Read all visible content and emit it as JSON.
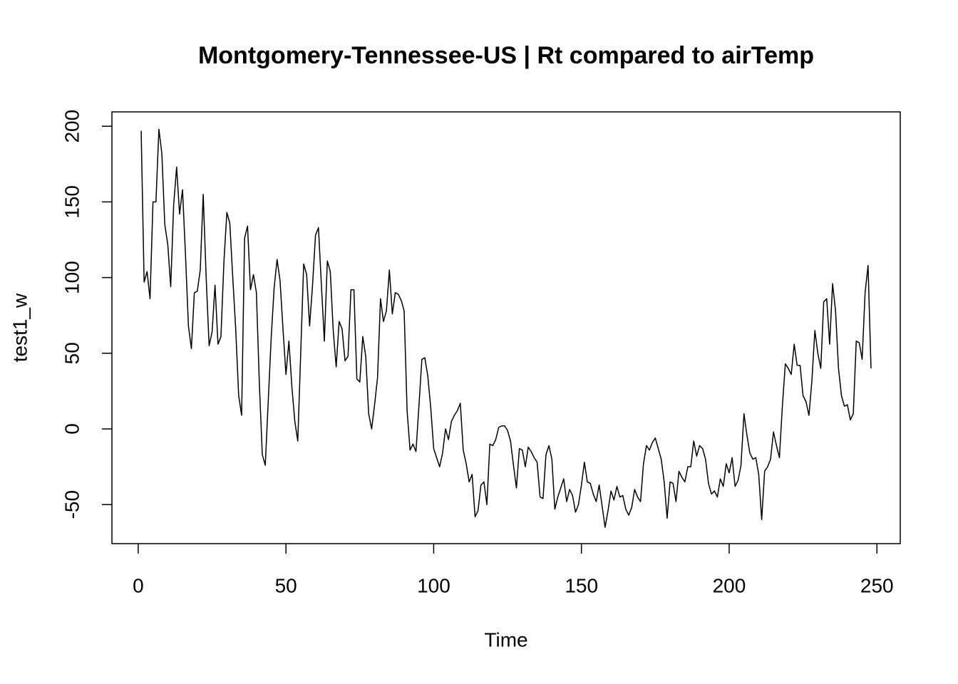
{
  "chart_data": {
    "type": "line",
    "title": "Montgomery-Tennessee-US | Rt compared to airTemp",
    "x_label": "Time",
    "y_label": "test1_w",
    "color": "#000000",
    "xlim": [
      -8.9,
      257.9
    ],
    "ylim": [
      -75.8,
      209.5
    ],
    "xticks": [
      0,
      50,
      100,
      150,
      200,
      250
    ],
    "yticks": [
      -50,
      0,
      50,
      100,
      150,
      200
    ],
    "x": [
      1,
      2,
      3,
      4,
      5,
      6,
      7,
      8,
      9,
      10,
      11,
      12,
      13,
      14,
      15,
      16,
      17,
      18,
      19,
      20,
      21,
      22,
      23,
      24,
      25,
      26,
      27,
      28,
      29,
      30,
      31,
      32,
      33,
      34,
      35,
      36,
      37,
      38,
      39,
      40,
      41,
      42,
      43,
      44,
      45,
      46,
      47,
      48,
      49,
      50,
      51,
      52,
      53,
      54,
      55,
      56,
      57,
      58,
      59,
      60,
      61,
      62,
      63,
      64,
      65,
      66,
      67,
      68,
      69,
      70,
      71,
      72,
      73,
      74,
      75,
      76,
      77,
      78,
      79,
      80,
      81,
      82,
      83,
      84,
      85,
      86,
      87,
      88,
      89,
      90,
      91,
      92,
      93,
      94,
      95,
      96,
      97,
      98,
      99,
      100,
      101,
      102,
      103,
      104,
      105,
      106,
      107,
      108,
      109,
      110,
      111,
      112,
      113,
      114,
      115,
      116,
      117,
      118,
      119,
      120,
      121,
      122,
      123,
      124,
      125,
      126,
      127,
      128,
      129,
      130,
      131,
      132,
      133,
      134,
      135,
      136,
      137,
      138,
      139,
      140,
      141,
      142,
      143,
      144,
      145,
      146,
      147,
      148,
      149,
      150,
      151,
      152,
      153,
      154,
      155,
      156,
      157,
      158,
      159,
      160,
      161,
      162,
      163,
      164,
      165,
      166,
      167,
      168,
      169,
      170,
      171,
      172,
      173,
      174,
      175,
      176,
      177,
      178,
      179,
      180,
      181,
      182,
      183,
      184,
      185,
      186,
      187,
      188,
      189,
      190,
      191,
      192,
      193,
      194,
      195,
      196,
      197,
      198,
      199,
      200,
      201,
      202,
      203,
      204,
      205,
      206,
      207,
      208,
      209,
      210,
      211,
      212,
      213,
      214,
      215,
      216,
      217,
      218,
      219,
      220,
      221,
      222,
      223,
      224,
      225,
      226,
      227,
      228,
      229,
      230,
      231,
      232,
      233,
      234,
      235,
      236,
      237,
      238,
      239,
      240,
      241,
      242,
      243,
      244,
      245,
      246,
      247,
      248
    ],
    "values": [
      197,
      97,
      104,
      86,
      150,
      150,
      198,
      182,
      135,
      122,
      94,
      148,
      173,
      142,
      158,
      115,
      68,
      53,
      90,
      91,
      105,
      155,
      100,
      55,
      64,
      95,
      56,
      61,
      110,
      143,
      136,
      100,
      66,
      22,
      9,
      126,
      134,
      92,
      102,
      90,
      30,
      -17,
      -24,
      18,
      60,
      93,
      112,
      98,
      66,
      36,
      58,
      28,
      5,
      -8,
      50,
      109,
      102,
      68,
      95,
      128,
      133,
      95,
      58,
      111,
      104,
      65,
      41,
      71,
      66,
      45,
      48,
      92,
      92,
      33,
      31,
      61,
      48,
      10,
      0,
      16,
      34,
      86,
      71,
      78,
      105,
      76,
      90,
      89,
      85,
      78,
      12,
      -14,
      -10,
      -15,
      15,
      46,
      47,
      35,
      14,
      -13,
      -19,
      -25,
      -16,
      0,
      -7,
      5,
      9,
      12,
      17,
      -14,
      -23,
      -35,
      -30,
      -58,
      -54,
      -37,
      -35,
      -50,
      -10,
      -11,
      -7,
      1,
      2,
      2,
      -1,
      -8,
      -24,
      -39,
      -13,
      -14,
      -25,
      -12,
      -15,
      -19,
      -22,
      -45,
      -46,
      -17,
      -11,
      -20,
      -53,
      -45,
      -39,
      -33,
      -48,
      -40,
      -44,
      -55,
      -50,
      -37,
      -22,
      -35,
      -36,
      -43,
      -48,
      -37,
      -51,
      -65,
      -54,
      -41,
      -47,
      -38,
      -45,
      -44,
      -53,
      -57,
      -52,
      -40,
      -45,
      -48,
      -23,
      -11,
      -14,
      -9,
      -6,
      -13,
      -20,
      -35,
      -59,
      -35,
      -36,
      -48,
      -28,
      -32,
      -35,
      -25,
      -25,
      -8,
      -18,
      -11,
      -13,
      -20,
      -36,
      -43,
      -41,
      -45,
      -33,
      -38,
      -23,
      -29,
      -19,
      -38,
      -34,
      -24,
      10,
      -4,
      -16,
      -20,
      -19,
      -30,
      -60,
      -28,
      -25,
      -20,
      -2,
      -11,
      -19,
      15,
      43,
      40,
      36,
      56,
      42,
      42,
      22,
      18,
      9,
      32,
      65,
      50,
      40,
      84,
      86,
      56,
      96,
      78,
      40,
      22,
      15,
      16,
      6,
      10,
      58,
      57,
      46,
      90,
      108,
      40
    ]
  }
}
